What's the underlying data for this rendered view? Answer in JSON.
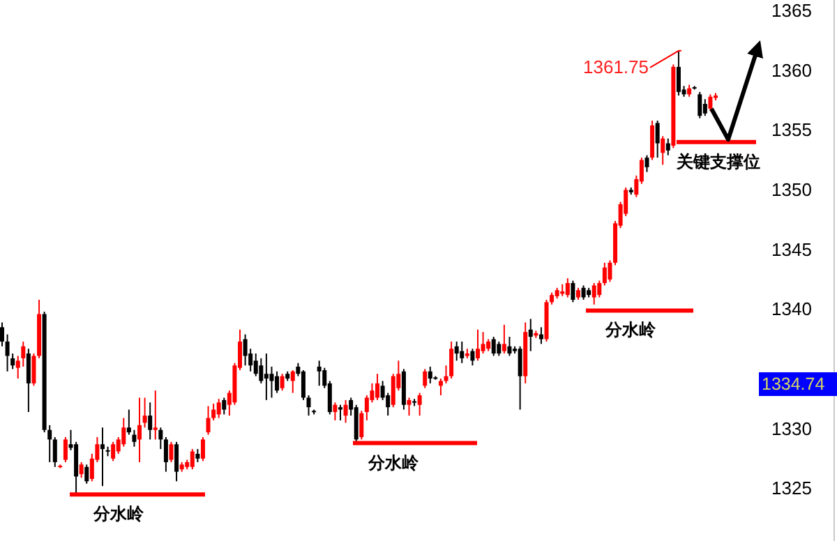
{
  "chart_data": {
    "type": "candlestick",
    "categories": [
      null,
      null,
      null,
      null,
      null,
      null,
      null,
      null,
      null,
      null,
      null,
      null,
      null,
      null,
      null,
      null,
      null,
      null,
      null,
      null,
      null,
      null,
      null,
      null,
      null,
      null,
      null,
      null,
      null,
      null,
      null,
      null,
      null,
      null,
      null,
      null,
      null,
      null,
      null,
      null,
      null,
      null,
      null,
      null,
      null,
      null,
      null,
      null,
      null,
      null,
      null,
      null,
      null,
      null,
      null,
      null,
      null,
      null,
      null,
      null,
      null,
      null,
      null,
      null,
      null,
      null,
      null,
      null,
      null,
      null,
      null,
      null,
      null,
      null,
      null,
      null,
      null,
      null,
      null,
      null,
      null,
      null,
      null,
      null,
      null,
      null,
      null,
      null,
      null,
      null,
      null,
      null,
      null,
      null,
      null,
      null,
      null,
      null,
      null,
      null,
      null,
      null,
      null,
      null,
      null,
      null,
      null,
      null,
      null,
      null,
      null,
      null,
      null,
      null,
      null,
      null,
      null,
      null,
      null,
      null,
      null,
      null,
      null,
      null,
      null,
      null,
      null,
      null,
      null,
      null,
      null,
      null,
      null,
      null,
      null,
      null
    ],
    "ohlc": [
      [
        1338.6,
        1339.0,
        1337.0,
        1337.4
      ],
      [
        1337.4,
        1338.0,
        1334.9,
        1336.2
      ],
      [
        1336.0,
        1336.4,
        1335.1,
        1335.4
      ],
      [
        1335.2,
        1336.2,
        1334.3,
        1335.8
      ],
      [
        1336.0,
        1337.4,
        1335.3,
        1337.0
      ],
      [
        1336.4,
        1336.8,
        1331.5,
        1333.9
      ],
      [
        1333.9,
        1336.4,
        1333.7,
        1336.2
      ],
      [
        1336.2,
        1340.9,
        1336.0,
        1339.7
      ],
      [
        1339.7,
        1339.9,
        1329.8,
        1330.0
      ],
      [
        1330.0,
        1330.4,
        1327.3,
        1329.2
      ],
      [
        1329.2,
        1329.4,
        1326.9,
        1327.3
      ],
      [
        1326.9,
        1327.1,
        1326.8,
        1327.0
      ],
      [
        1327.5,
        1329.4,
        1327.3,
        1329.2
      ],
      [
        1328.8,
        1330.0,
        1328.3,
        1328.5
      ],
      [
        1328.8,
        1329.0,
        1324.7,
        1326.1
      ],
      [
        1326.3,
        1327.3,
        1326.0,
        1327.1
      ],
      [
        1326.9,
        1327.1,
        1325.5,
        1325.7
      ],
      [
        1325.9,
        1328.0,
        1325.7,
        1327.6
      ],
      [
        1327.5,
        1329.4,
        1327.3,
        1328.8
      ],
      [
        1328.8,
        1330.2,
        1325.3,
        1328.4
      ],
      [
        1328.3,
        1328.6,
        1327.8,
        1328.2
      ],
      [
        1327.6,
        1329.0,
        1327.4,
        1328.8
      ],
      [
        1328.2,
        1329.4,
        1328.0,
        1329.2
      ],
      [
        1328.8,
        1331.0,
        1328.6,
        1330.2
      ],
      [
        1330.2,
        1331.7,
        1329.6,
        1329.8
      ],
      [
        1329.6,
        1330.0,
        1328.6,
        1329.0
      ],
      [
        1329.2,
        1332.7,
        1327.3,
        1330.4
      ],
      [
        1330.6,
        1332.7,
        1330.2,
        1331.2
      ],
      [
        1331.2,
        1332.3,
        1329.2,
        1330.0
      ],
      [
        1330.0,
        1333.3,
        1329.2,
        1330.2
      ],
      [
        1330.0,
        1330.2,
        1328.4,
        1329.2
      ],
      [
        1329.2,
        1329.4,
        1326.5,
        1327.3
      ],
      [
        1327.5,
        1329.0,
        1327.3,
        1328.8
      ],
      [
        1328.8,
        1329.0,
        1325.7,
        1326.5
      ],
      [
        1326.7,
        1327.3,
        1326.5,
        1327.1
      ],
      [
        1326.9,
        1327.5,
        1326.7,
        1327.3
      ],
      [
        1326.9,
        1328.4,
        1326.7,
        1328.2
      ],
      [
        1328.0,
        1328.4,
        1327.3,
        1327.6
      ],
      [
        1327.6,
        1329.4,
        1327.4,
        1329.2
      ],
      [
        1329.8,
        1332.0,
        1329.6,
        1331.0
      ],
      [
        1331.0,
        1332.2,
        1330.8,
        1331.7
      ],
      [
        1331.3,
        1332.6,
        1331.0,
        1332.3
      ],
      [
        1332.5,
        1332.7,
        1331.3,
        1331.7
      ],
      [
        1332.1,
        1333.3,
        1331.2,
        1333.1
      ],
      [
        1332.3,
        1335.6,
        1332.1,
        1335.4
      ],
      [
        1335.2,
        1338.4,
        1335.0,
        1337.4
      ],
      [
        1337.6,
        1338.0,
        1335.4,
        1336.2
      ],
      [
        1336.4,
        1336.8,
        1334.9,
        1335.4
      ],
      [
        1335.8,
        1336.4,
        1334.5,
        1334.7
      ],
      [
        1335.4,
        1336.0,
        1333.9,
        1334.1
      ],
      [
        1334.7,
        1336.4,
        1332.5,
        1334.3
      ],
      [
        1334.7,
        1335.3,
        1332.7,
        1334.1
      ],
      [
        1334.5,
        1334.9,
        1333.1,
        1333.3
      ],
      [
        1333.5,
        1334.7,
        1333.3,
        1334.5
      ],
      [
        1334.7,
        1334.9,
        1334.1,
        1334.3
      ],
      [
        1334.1,
        1335.0,
        1333.1,
        1334.9
      ],
      [
        1335.3,
        1335.6,
        1334.5,
        1334.7
      ],
      [
        1334.9,
        1335.0,
        1332.5,
        1332.7
      ],
      [
        1332.7,
        1332.9,
        1331.2,
        1331.9
      ],
      [
        1331.6,
        1331.7,
        1331.3,
        1331.5
      ],
      [
        1335.3,
        1335.8,
        1333.7,
        1334.9
      ],
      [
        1335.0,
        1335.2,
        1333.5,
        1333.7
      ],
      [
        1333.9,
        1334.1,
        1331.3,
        1331.5
      ],
      [
        1331.5,
        1332.3,
        1330.8,
        1332.1
      ],
      [
        1331.9,
        1332.1,
        1330.8,
        1331.7
      ],
      [
        1331.2,
        1332.5,
        1330.6,
        1332.1
      ],
      [
        1332.5,
        1332.7,
        1331.2,
        1331.7
      ],
      [
        1331.9,
        1332.1,
        1328.8,
        1329.2
      ],
      [
        1329.4,
        1331.6,
        1329.2,
        1331.4
      ],
      [
        1331.5,
        1332.9,
        1330.8,
        1332.7
      ],
      [
        1332.5,
        1333.9,
        1332.3,
        1333.3
      ],
      [
        1332.7,
        1334.7,
        1332.5,
        1333.9
      ],
      [
        1333.7,
        1334.1,
        1332.5,
        1332.7
      ],
      [
        1332.9,
        1333.1,
        1331.2,
        1331.9
      ],
      [
        1332.1,
        1334.7,
        1331.9,
        1334.5
      ],
      [
        1333.5,
        1335.8,
        1333.3,
        1334.7
      ],
      [
        1334.9,
        1335.1,
        1331.7,
        1332.1
      ],
      [
        1332.1,
        1332.7,
        1331.2,
        1332.5
      ],
      [
        1332.4,
        1332.6,
        1332.0,
        1332.3
      ],
      [
        1332.1,
        1333.1,
        1331.2,
        1332.9
      ],
      [
        1333.7,
        1335.1,
        1333.5,
        1334.9
      ],
      [
        1334.9,
        1335.3,
        1333.9,
        1334.3
      ],
      [
        1334.4,
        1334.5,
        1334.2,
        1334.3
      ],
      [
        1333.7,
        1334.3,
        1332.9,
        1334.1
      ],
      [
        1334.1,
        1335.4,
        1333.9,
        1334.5
      ],
      [
        1334.5,
        1337.4,
        1334.3,
        1336.8
      ],
      [
        1337.0,
        1337.4,
        1335.8,
        1336.4
      ],
      [
        1336.6,
        1337.4,
        1335.6,
        1336.0
      ],
      [
        1336.2,
        1336.8,
        1336.0,
        1336.4
      ],
      [
        1336.6,
        1336.8,
        1335.4,
        1335.8
      ],
      [
        1336.0,
        1338.4,
        1335.8,
        1336.8
      ],
      [
        1336.6,
        1338.2,
        1336.4,
        1337.2
      ],
      [
        1336.8,
        1337.6,
        1336.6,
        1337.4
      ],
      [
        1337.6,
        1337.8,
        1336.2,
        1336.4
      ],
      [
        1337.2,
        1337.4,
        1336.2,
        1336.4
      ],
      [
        1336.6,
        1338.8,
        1336.4,
        1337.2
      ],
      [
        1337.0,
        1337.8,
        1336.2,
        1336.4
      ],
      [
        1336.8,
        1337.0,
        1336.4,
        1336.6
      ],
      [
        1336.8,
        1337.0,
        1331.7,
        1334.5
      ],
      [
        1334.5,
        1339.0,
        1333.9,
        1338.2
      ],
      [
        1338.4,
        1339.3,
        1336.6,
        1337.8
      ],
      [
        1337.9,
        1338.3,
        1337.7,
        1338.1
      ],
      [
        1338.0,
        1338.6,
        1337.2,
        1337.6
      ],
      [
        1337.6,
        1340.9,
        1337.4,
        1340.7
      ],
      [
        1340.7,
        1341.5,
        1340.5,
        1341.3
      ],
      [
        1341.2,
        1341.9,
        1341.0,
        1341.7
      ],
      [
        1341.4,
        1342.2,
        1341.2,
        1341.6
      ],
      [
        1341.3,
        1342.7,
        1341.1,
        1342.3
      ],
      [
        1342.3,
        1342.5,
        1340.7,
        1340.9
      ],
      [
        1341.1,
        1341.9,
        1340.9,
        1341.7
      ],
      [
        1341.9,
        1342.1,
        1340.9,
        1341.1
      ],
      [
        1341.7,
        1341.9,
        1341.1,
        1341.3
      ],
      [
        1341.1,
        1342.3,
        1340.5,
        1342.1
      ],
      [
        1341.3,
        1342.5,
        1341.1,
        1342.3
      ],
      [
        1342.3,
        1344.0,
        1342.1,
        1343.6
      ],
      [
        1342.6,
        1344.2,
        1342.4,
        1344.0
      ],
      [
        1344.0,
        1347.5,
        1343.8,
        1347.3
      ],
      [
        1347.1,
        1349.1,
        1346.9,
        1348.9
      ],
      [
        1348.1,
        1350.3,
        1347.9,
        1350.1
      ],
      [
        1350.1,
        1350.3,
        1349.7,
        1349.9
      ],
      [
        1349.7,
        1351.3,
        1349.5,
        1351.0
      ],
      [
        1350.8,
        1352.8,
        1350.6,
        1352.6
      ],
      [
        1352.8,
        1353.0,
        1351.6,
        1352.0
      ],
      [
        1352.8,
        1355.9,
        1352.6,
        1355.5
      ],
      [
        1355.7,
        1355.9,
        1352.8,
        1354.0
      ],
      [
        1353.2,
        1354.6,
        1352.2,
        1354.4
      ],
      [
        1354.0,
        1354.4,
        1353.0,
        1353.4
      ],
      [
        1353.8,
        1360.6,
        1353.6,
        1360.4
      ],
      [
        1360.4,
        1361.75,
        1358.0,
        1358.3
      ],
      [
        1358.5,
        1358.8,
        1357.9,
        1358.1
      ],
      [
        1358.1,
        1358.9,
        1357.9,
        1358.6
      ],
      [
        1358.7,
        1358.8,
        1358.5,
        1358.6
      ],
      [
        1358.1,
        1358.3,
        1356.1,
        1356.3
      ],
      [
        1357.3,
        1357.7,
        1356.3,
        1356.5
      ],
      [
        1356.9,
        1358.1,
        1356.7,
        1357.9
      ],
      [
        1357.8,
        1358.2,
        1357.6,
        1358.0
      ]
    ],
    "ylim": [
      1320.7,
      1366
    ],
    "yticks": [
      1325,
      1330,
      1340,
      1345,
      1350,
      1355,
      1360,
      1365
    ],
    "ref_lines": [
      {
        "axis": "y",
        "value": 1324.6,
        "label": "分水岭",
        "color": "#ff0000"
      },
      {
        "axis": "y",
        "value": 1328.9,
        "label": "分水岭",
        "color": "#ff0000"
      },
      {
        "axis": "y",
        "value": 1340.0,
        "label": "分水岭",
        "color": "#ff0000"
      },
      {
        "axis": "y",
        "value": 1354.1,
        "label": "关键支撑位",
        "color": "#ff0000"
      }
    ],
    "annotations": [
      "1361.75",
      "1334.74"
    ]
  }
}
